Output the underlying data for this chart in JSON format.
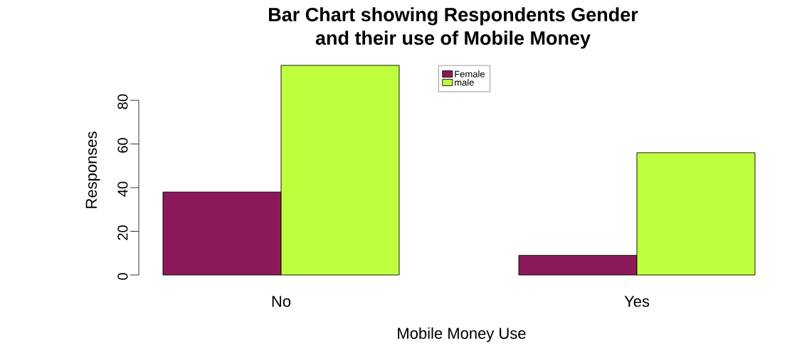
{
  "chart_data": {
    "type": "bar",
    "title": "Bar Chart showing Respondents Gender\nand their use of Mobile Money",
    "xlabel": "Mobile Money Use",
    "ylabel": "Responses",
    "categories": [
      "No",
      "Yes"
    ],
    "series": [
      {
        "name": "Female",
        "color": "#8b1a5a",
        "values": [
          38,
          9
        ]
      },
      {
        "name": "male",
        "color": "#c0ff3e",
        "values": [
          96,
          56
        ]
      }
    ],
    "ylim": [
      0,
      96
    ],
    "yticks": [
      0,
      20,
      40,
      60,
      80
    ],
    "grid": false,
    "legend": "top"
  }
}
